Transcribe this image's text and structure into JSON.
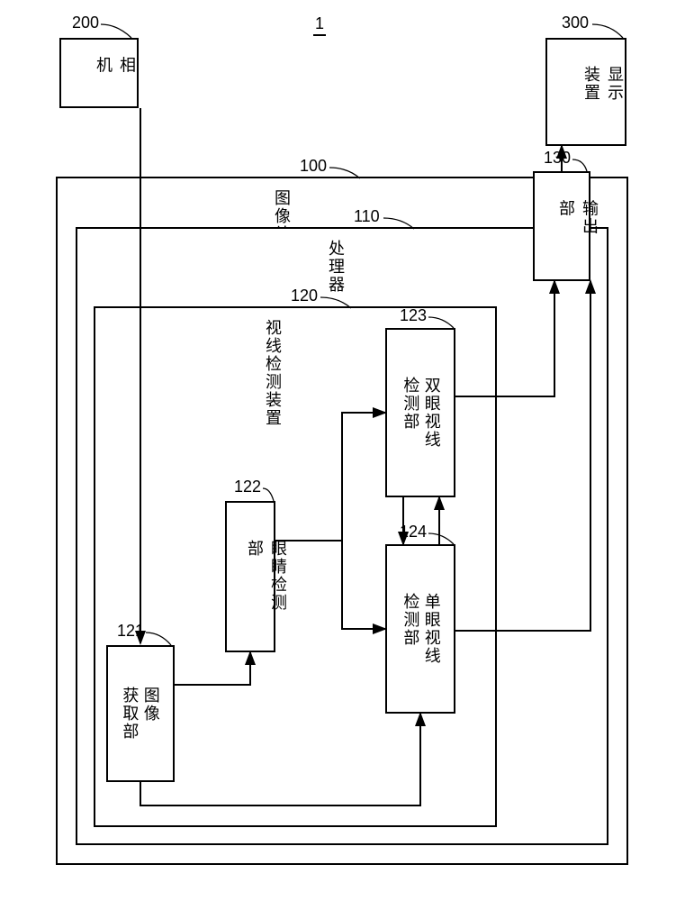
{
  "figure": {
    "system_ref": "1",
    "camera": {
      "label": "相机",
      "ref": "200"
    },
    "display": {
      "label": "显示装置",
      "ref": "300"
    },
    "img_proc": {
      "label": "图像处理装置",
      "ref": "100"
    },
    "processor": {
      "label": "处理器",
      "ref": "110"
    },
    "gaze_dev": {
      "label": "视线检测装置",
      "ref": "120"
    },
    "img_acq": {
      "label": "图像\n获取部",
      "ref": "121"
    },
    "eye_det": {
      "label": "眼睛检测部",
      "ref": "122"
    },
    "bino": {
      "label": "双眼视线\n检测部",
      "ref": "123"
    },
    "mono": {
      "label": "单眼视线\n检测部",
      "ref": "124"
    },
    "output": {
      "label": "输出部",
      "ref": "130"
    },
    "style": {
      "stroke": "#000000",
      "stroke_width": 2,
      "bg": "#ffffff",
      "font_size_label": 18,
      "font_size_ref": 18
    }
  }
}
